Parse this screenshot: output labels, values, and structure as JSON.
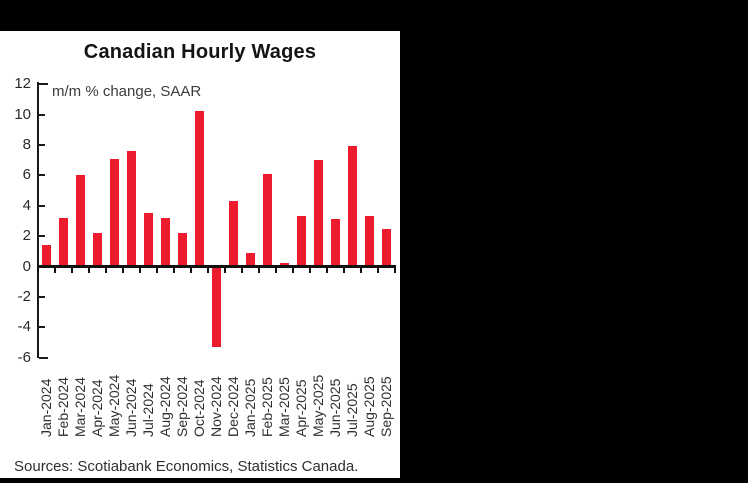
{
  "frame": {
    "background": "#000000",
    "panel_background": "#ffffff"
  },
  "colors": {
    "bar": "#ED1B2E",
    "axis": "#1a1a1a",
    "title_text": "#141414",
    "label_text": "#2f2f2f"
  },
  "chart_data": {
    "type": "bar",
    "title": "Canadian Hourly Wages",
    "subtitle": "m/m % change, SAAR",
    "source": "Sources: Scotiabank Economics, Statistics Canada.",
    "categories": [
      "Jan-2024",
      "Feb-2024",
      "Mar-2024",
      "Apr-2024",
      "May-2024",
      "Jun-2024",
      "Jul-2024",
      "Aug-2024",
      "Sep-2024",
      "Oct-2024",
      "Nov-2024",
      "Dec-2024",
      "Jan-2025",
      "Feb-2025",
      "Mar-2025",
      "Apr-2025",
      "May-2025",
      "Jun-2025",
      "Jul-2025",
      "Aug-2025",
      "Sep-2025"
    ],
    "values": [
      1.4,
      3.2,
      6.0,
      2.2,
      7.1,
      7.6,
      3.5,
      3.2,
      2.2,
      10.2,
      -5.3,
      4.3,
      0.9,
      6.1,
      0.2,
      3.3,
      7.0,
      3.1,
      7.9,
      3.3,
      2.5
    ],
    "xlabel": "",
    "ylabel": "",
    "ylim": [
      -6,
      12
    ],
    "yticks": [
      12,
      10,
      8,
      6,
      4,
      2,
      0,
      -2,
      -4,
      -6
    ],
    "grid": false,
    "legend": false,
    "bar_color": "#ED1B2E"
  }
}
